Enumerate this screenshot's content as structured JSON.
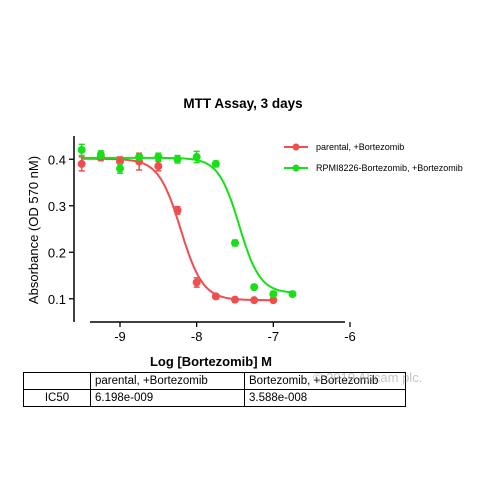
{
  "chart_data": {
    "type": "scatter",
    "title": "MTT Assay, 3 days",
    "xlabel": "Log [Bortezomib] M",
    "ylabel": "Absorbance (OD 570 nM)",
    "xlim": [
      -9.6,
      -6.0
    ],
    "ylim": [
      0.05,
      0.45
    ],
    "xticks": [
      -9,
      -8,
      -7,
      -6
    ],
    "yticks": [
      0.1,
      0.2,
      0.3,
      0.4
    ],
    "legend_position": "top-right",
    "series": [
      {
        "name": "parental, +Bortezomib",
        "color": "#f04e4e",
        "points": [
          {
            "x": -9.5,
            "y": 0.39,
            "err": 0.015
          },
          {
            "x": -9.25,
            "y": 0.405,
            "err": 0.008
          },
          {
            "x": -9.0,
            "y": 0.395,
            "err": 0.01
          },
          {
            "x": -8.75,
            "y": 0.395,
            "err": 0.018
          },
          {
            "x": -8.5,
            "y": 0.385,
            "err": 0.01
          },
          {
            "x": -8.25,
            "y": 0.29,
            "err": 0.008
          },
          {
            "x": -8.0,
            "y": 0.135,
            "err": 0.01
          },
          {
            "x": -7.75,
            "y": 0.105,
            "err": 0.005
          },
          {
            "x": -7.5,
            "y": 0.098,
            "err": 0.005
          },
          {
            "x": -7.25,
            "y": 0.097,
            "err": 0.004
          },
          {
            "x": -7.0,
            "y": 0.097,
            "err": 0.004
          }
        ],
        "fit": {
          "top": 0.401,
          "bottom": 0.097,
          "logIC50": -8.208,
          "hill": -3.0
        }
      },
      {
        "name": "RPMI8226-Bortezomib, +Bortezomib",
        "color": "#18e018",
        "points": [
          {
            "x": -9.5,
            "y": 0.42,
            "err": 0.012
          },
          {
            "x": -9.25,
            "y": 0.41,
            "err": 0.008
          },
          {
            "x": -9.0,
            "y": 0.38,
            "err": 0.01
          },
          {
            "x": -8.75,
            "y": 0.405,
            "err": 0.006
          },
          {
            "x": -8.5,
            "y": 0.405,
            "err": 0.008
          },
          {
            "x": -8.25,
            "y": 0.4,
            "err": 0.008
          },
          {
            "x": -8.0,
            "y": 0.405,
            "err": 0.012
          },
          {
            "x": -7.75,
            "y": 0.39,
            "err": 0.006
          },
          {
            "x": -7.5,
            "y": 0.22,
            "err": 0.006
          },
          {
            "x": -7.25,
            "y": 0.125,
            "err": 0.005
          },
          {
            "x": -7.0,
            "y": 0.11,
            "err": 0.006
          },
          {
            "x": -6.75,
            "y": 0.11,
            "err": 0.005
          }
        ],
        "fit": {
          "top": 0.403,
          "bottom": 0.112,
          "logIC50": -7.445,
          "hill": -3.2
        }
      }
    ]
  },
  "table": {
    "headers": [
      "",
      "parental, +Bortezomib",
      "Bortezomib, +Bortezomib"
    ],
    "row_label": "IC50",
    "values": [
      "6.198e-009",
      "3.588e-008"
    ]
  },
  "watermark": "© 2019 Abcam plc."
}
